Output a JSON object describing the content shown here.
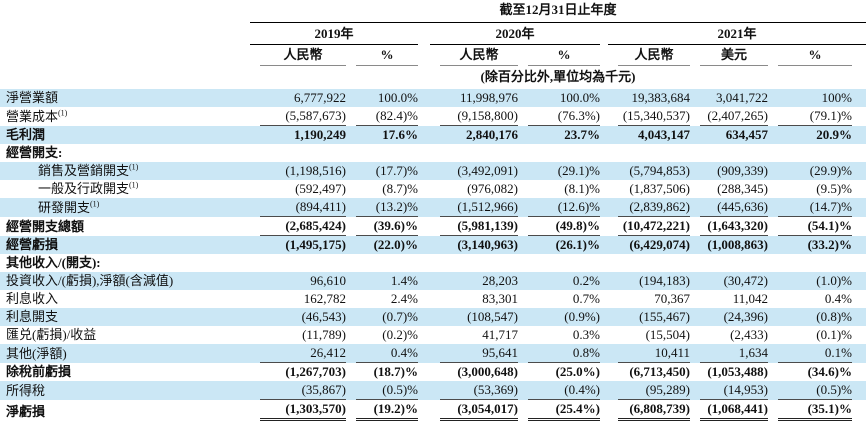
{
  "colors": {
    "row_highlight": "#cbe7f5",
    "rule_dark": "#000000",
    "rule_light": "#8a8a8a",
    "text": "#111111"
  },
  "table": {
    "title": "截至12月31日止年度",
    "unit_note": "(除百分比外,單位均為千元)",
    "year_groups": [
      {
        "label": "2019年"
      },
      {
        "label": "2020年"
      },
      {
        "label": "2021年"
      }
    ],
    "col_headers": [
      "人民幣",
      "%",
      "人民幣",
      "%",
      "人民幣",
      "美元",
      "%"
    ],
    "rows": [
      {
        "label": "淨營業額",
        "sup": "",
        "indent": false,
        "bold": false,
        "bold_label": false,
        "highlight": true,
        "underline": "none",
        "values": [
          "6,777,922",
          "100.0%",
          "11,998,976",
          "100.0%",
          "19,383,684",
          "3,041,722",
          "100%"
        ]
      },
      {
        "label": "營業成本",
        "sup": "(1)",
        "indent": false,
        "bold": false,
        "bold_label": false,
        "highlight": false,
        "underline": "single",
        "values": [
          "(5,587,673)",
          "(82.4)%",
          "(9,158,800)",
          "(76.3%)",
          "(15,340,537)",
          "(2,407,265)",
          "(79.1)%"
        ]
      },
      {
        "label": "毛利潤",
        "sup": "",
        "indent": false,
        "bold": true,
        "bold_label": false,
        "highlight": true,
        "underline": "none",
        "values": [
          "1,190,249",
          "17.6%",
          "2,840,176",
          "23.7%",
          "4,043,147",
          "634,457",
          "20.9%"
        ]
      },
      {
        "label": "經營開支:",
        "sup": "",
        "indent": false,
        "bold": false,
        "bold_label": true,
        "highlight": false,
        "underline": "none",
        "values": [
          "",
          "",
          "",
          "",
          "",
          "",
          ""
        ]
      },
      {
        "label": "銷售及營銷開支",
        "sup": "(1)",
        "indent": true,
        "bold": false,
        "bold_label": false,
        "highlight": true,
        "underline": "none",
        "values": [
          "(1,198,516)",
          "(17.7)%",
          "(3,492,091)",
          "(29.1)%",
          "(5,794,853)",
          "(909,339)",
          "(29.9)%"
        ]
      },
      {
        "label": "一般及行政開支",
        "sup": "(1)",
        "indent": true,
        "bold": false,
        "bold_label": false,
        "highlight": false,
        "underline": "none",
        "values": [
          "(592,497)",
          "(8.7)%",
          "(976,082)",
          "(8.1)%",
          "(1,837,506)",
          "(288,345)",
          "(9.5)%"
        ]
      },
      {
        "label": "研發開支",
        "sup": "(1)",
        "indent": true,
        "bold": false,
        "bold_label": false,
        "highlight": true,
        "underline": "single",
        "values": [
          "(894,411)",
          "(13.2)%",
          "(1,512,966)",
          "(12.6)%",
          "(2,839,862)",
          "(445,636)",
          "(14.7)%"
        ]
      },
      {
        "label": "經營開支總額",
        "sup": "",
        "indent": false,
        "bold": true,
        "bold_label": false,
        "highlight": false,
        "underline": "single",
        "values": [
          "(2,685,424)",
          "(39.6)%",
          "(5,981,139)",
          "(49.8)%",
          "(10,472,221)",
          "(1,643,320)",
          "(54.1)%"
        ]
      },
      {
        "label": "經營虧損",
        "sup": "",
        "indent": false,
        "bold": true,
        "bold_label": false,
        "highlight": true,
        "underline": "none",
        "values": [
          "(1,495,175)",
          "(22.0)%",
          "(3,140,963)",
          "(26.1)%",
          "(6,429,074)",
          "(1,008,863)",
          "(33.2)%"
        ]
      },
      {
        "label": "其他收入/(開支):",
        "sup": "",
        "indent": false,
        "bold": false,
        "bold_label": true,
        "highlight": false,
        "underline": "none",
        "values": [
          "",
          "",
          "",
          "",
          "",
          "",
          ""
        ]
      },
      {
        "label": "投資收入/(虧損),淨額(含減值)",
        "sup": "",
        "indent": false,
        "bold": false,
        "bold_label": false,
        "highlight": true,
        "underline": "none",
        "values": [
          "96,610",
          "1.4%",
          "28,203",
          "0.2%",
          "(194,183)",
          "(30,472)",
          "(1.0)%"
        ]
      },
      {
        "label": "利息收入",
        "sup": "",
        "indent": false,
        "bold": false,
        "bold_label": false,
        "highlight": false,
        "underline": "none",
        "values": [
          "162,782",
          "2.4%",
          "83,301",
          "0.7%",
          "70,367",
          "11,042",
          "0.4%"
        ]
      },
      {
        "label": "利息開支",
        "sup": "",
        "indent": false,
        "bold": false,
        "bold_label": false,
        "highlight": true,
        "underline": "none",
        "values": [
          "(46,543)",
          "(0.7)%",
          "(108,547)",
          "(0.9%)",
          "(155,467)",
          "(24,396)",
          "(0.8)%"
        ]
      },
      {
        "label": "匯兑(虧損)/收益",
        "sup": "",
        "indent": false,
        "bold": false,
        "bold_label": false,
        "highlight": false,
        "underline": "none",
        "values": [
          "(11,789)",
          "(0.2)%",
          "41,717",
          "0.3%",
          "(15,504)",
          "(2,433)",
          "(0.1)%"
        ]
      },
      {
        "label": "其他(淨額)",
        "sup": "",
        "indent": false,
        "bold": false,
        "bold_label": false,
        "highlight": true,
        "underline": "single",
        "values": [
          "26,412",
          "0.4%",
          "95,641",
          "0.8%",
          "10,411",
          "1,634",
          "0.1%"
        ]
      },
      {
        "label": "除稅前虧損",
        "sup": "",
        "indent": false,
        "bold": true,
        "bold_label": false,
        "highlight": false,
        "underline": "none",
        "values": [
          "(1,267,703)",
          "(18.7)%",
          "(3,000,648)",
          "(25.0%)",
          "(6,713,450)",
          "(1,053,488)",
          "(34.6)%"
        ]
      },
      {
        "label": "所得稅",
        "sup": "",
        "indent": false,
        "bold": false,
        "bold_label": false,
        "highlight": true,
        "underline": "single",
        "values": [
          "(35,867)",
          "(0.5)%",
          "(53,369)",
          "(0.4%)",
          "(95,289)",
          "(14,953)",
          "(0.5)%"
        ]
      },
      {
        "label": "淨虧損",
        "sup": "",
        "indent": false,
        "bold": true,
        "bold_label": false,
        "highlight": false,
        "underline": "double",
        "values": [
          "(1,303,570)",
          "(19.2)%",
          "(3,054,017)",
          "(25.4%)",
          "(6,808,739)",
          "(1,068,441)",
          "(35.1)%"
        ]
      }
    ]
  }
}
